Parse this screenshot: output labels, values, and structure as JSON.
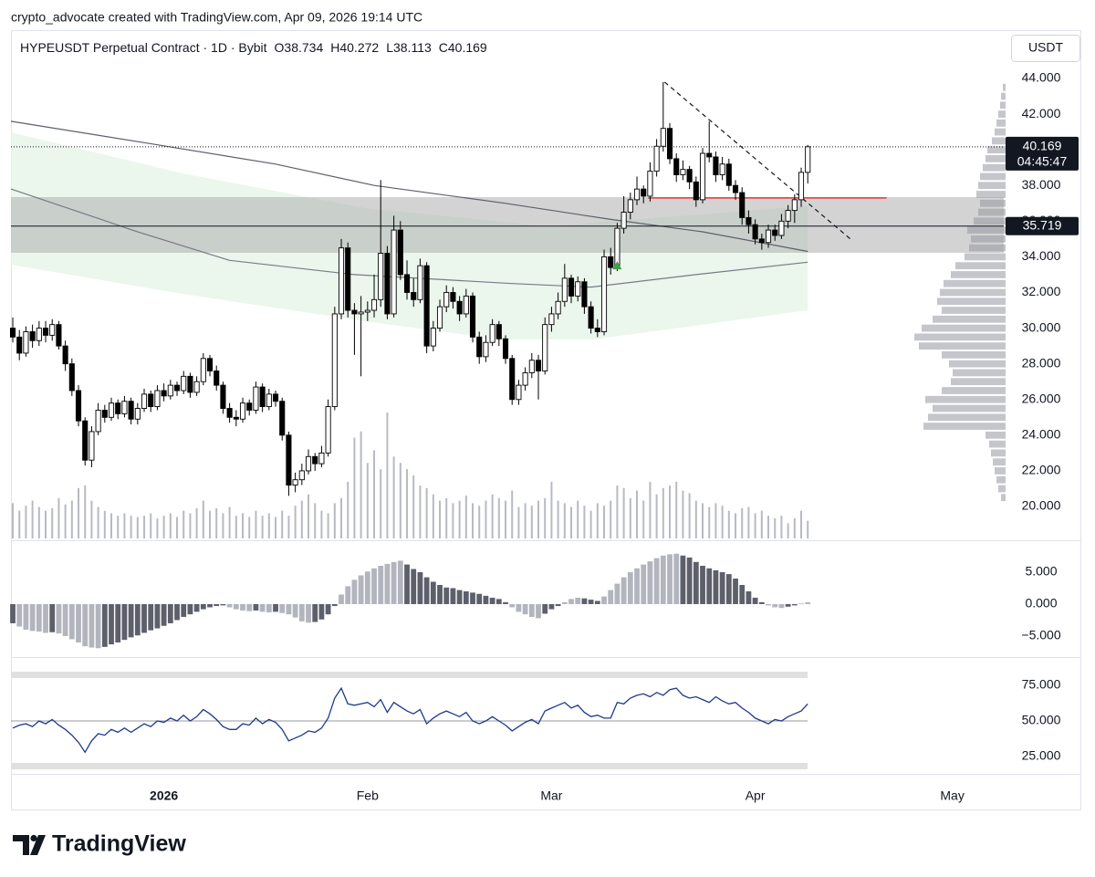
{
  "header": {
    "credit": "crypto_advocate created with TradingView.com, Apr 09, 2026 19:14 UTC"
  },
  "brand": "TradingView",
  "chart_data": {
    "type": "candlestick",
    "title": "HYPEUSDT Perpetual Contract · 1D · Bybit",
    "ohlc_letters": [
      "O",
      "H",
      "L",
      "C"
    ],
    "currency_button": "USDT",
    "xlim": [
      -0.28,
      150.83
    ],
    "xticks": [
      {
        "value": 23,
        "label": "2026"
      },
      {
        "value": 54,
        "label": "Feb"
      },
      {
        "value": 82,
        "label": "Mar"
      },
      {
        "value": 113,
        "label": "Apr"
      },
      {
        "value": 143,
        "label": "May"
      }
    ],
    "ylim": [
      18.21,
      46.71
    ],
    "yticks": [
      {
        "value": 44,
        "label": "44.000"
      },
      {
        "value": 42,
        "label": "42.000"
      },
      {
        "value": 40,
        "label": "40.000"
      },
      {
        "value": 38,
        "label": "38.000"
      },
      {
        "value": 36,
        "label": "36.000"
      },
      {
        "value": 34,
        "label": "34.000"
      },
      {
        "value": 32,
        "label": "32.000"
      },
      {
        "value": 30,
        "label": "30.000"
      },
      {
        "value": 28,
        "label": "28.000"
      },
      {
        "value": 26,
        "label": "26.000"
      },
      {
        "value": 24,
        "label": "24.000"
      },
      {
        "value": 22,
        "label": "22.000"
      },
      {
        "value": 20,
        "label": "20.000"
      }
    ],
    "up_color": "#ffffff",
    "down_color": "#000000",
    "candles": [
      [
        30.0,
        30.6,
        29.2,
        29.5
      ],
      [
        29.5,
        29.9,
        28.2,
        28.6
      ],
      [
        28.6,
        30.1,
        28.4,
        29.8
      ],
      [
        29.8,
        30.2,
        28.9,
        29.3
      ],
      [
        29.3,
        30.4,
        29.0,
        30.0
      ],
      [
        30.0,
        30.4,
        29.2,
        29.6
      ],
      [
        29.6,
        30.5,
        29.3,
        30.2
      ],
      [
        30.2,
        30.4,
        28.8,
        29.0
      ],
      [
        29.0,
        29.3,
        27.6,
        28.0
      ],
      [
        28.0,
        28.3,
        26.2,
        26.5
      ],
      [
        26.5,
        26.8,
        24.5,
        24.8
      ],
      [
        24.8,
        25.0,
        22.3,
        22.6
      ],
      [
        22.6,
        24.5,
        22.2,
        24.2
      ],
      [
        24.2,
        25.8,
        24.0,
        25.4
      ],
      [
        25.4,
        25.7,
        24.7,
        25.0
      ],
      [
        25.0,
        26.1,
        24.8,
        25.8
      ],
      [
        25.8,
        26.0,
        24.9,
        25.2
      ],
      [
        25.2,
        26.2,
        25.0,
        25.9
      ],
      [
        25.9,
        26.1,
        24.6,
        24.9
      ],
      [
        24.9,
        25.8,
        24.6,
        25.5
      ],
      [
        25.5,
        26.6,
        25.3,
        26.3
      ],
      [
        26.3,
        26.5,
        25.3,
        25.6
      ],
      [
        25.6,
        26.8,
        25.4,
        26.5
      ],
      [
        26.5,
        26.9,
        25.9,
        26.2
      ],
      [
        26.2,
        27.1,
        26.0,
        26.8
      ],
      [
        26.8,
        27.0,
        26.2,
        26.5
      ],
      [
        26.5,
        27.6,
        26.3,
        27.3
      ],
      [
        27.3,
        27.5,
        26.1,
        26.4
      ],
      [
        26.4,
        27.3,
        26.2,
        27.0
      ],
      [
        27.0,
        28.6,
        26.8,
        28.3
      ],
      [
        28.3,
        28.5,
        27.3,
        27.6
      ],
      [
        27.6,
        27.9,
        26.5,
        26.8
      ],
      [
        26.8,
        27.0,
        25.2,
        25.5
      ],
      [
        25.5,
        25.8,
        24.7,
        25.0
      ],
      [
        25.0,
        25.4,
        24.5,
        24.9
      ],
      [
        24.9,
        26.1,
        24.7,
        25.8
      ],
      [
        25.8,
        26.0,
        25.1,
        25.4
      ],
      [
        25.4,
        27.0,
        25.2,
        26.7
      ],
      [
        26.7,
        26.9,
        25.3,
        25.6
      ],
      [
        25.6,
        26.6,
        25.4,
        26.3
      ],
      [
        26.3,
        26.5,
        25.6,
        25.9
      ],
      [
        25.9,
        26.1,
        23.7,
        24.0
      ],
      [
        24.0,
        24.2,
        20.6,
        21.2
      ],
      [
        21.2,
        21.9,
        20.8,
        21.5
      ],
      [
        21.5,
        22.4,
        21.2,
        22.0
      ],
      [
        22.0,
        23.2,
        21.8,
        22.8
      ],
      [
        22.8,
        23.0,
        22.0,
        22.4
      ],
      [
        22.4,
        23.4,
        22.2,
        23.0
      ],
      [
        23.0,
        26.0,
        22.8,
        25.6
      ],
      [
        25.6,
        31.2,
        25.4,
        30.8
      ],
      [
        30.8,
        35.0,
        30.5,
        34.5
      ],
      [
        34.5,
        34.8,
        30.6,
        31.0
      ],
      [
        31.0,
        31.4,
        28.5,
        30.8
      ],
      [
        30.8,
        31.8,
        27.3,
        30.9
      ],
      [
        30.9,
        31.5,
        30.4,
        31.0
      ],
      [
        31.0,
        33.0,
        30.6,
        31.6
      ],
      [
        31.6,
        38.3,
        31.2,
        34.2
      ],
      [
        34.2,
        34.6,
        30.5,
        30.8
      ],
      [
        30.8,
        36.3,
        30.6,
        35.5
      ],
      [
        35.5,
        36.0,
        32.7,
        33.0
      ],
      [
        33.0,
        33.8,
        31.6,
        32.0
      ],
      [
        32.0,
        32.8,
        31.2,
        31.6
      ],
      [
        31.6,
        33.9,
        31.4,
        33.5
      ],
      [
        33.5,
        33.7,
        28.6,
        29.0
      ],
      [
        29.0,
        30.4,
        28.7,
        30.0
      ],
      [
        30.0,
        31.6,
        29.8,
        31.2
      ],
      [
        31.2,
        32.4,
        30.9,
        32.0
      ],
      [
        32.0,
        32.3,
        31.1,
        31.5
      ],
      [
        31.5,
        31.8,
        30.4,
        30.8
      ],
      [
        30.8,
        32.2,
        30.6,
        31.8
      ],
      [
        31.8,
        32.0,
        29.2,
        29.5
      ],
      [
        29.5,
        29.8,
        28.0,
        28.4
      ],
      [
        28.4,
        29.6,
        28.1,
        29.2
      ],
      [
        29.2,
        30.5,
        29.0,
        30.2
      ],
      [
        30.2,
        30.4,
        29.0,
        29.4
      ],
      [
        29.4,
        29.6,
        28.0,
        28.3
      ],
      [
        28.3,
        28.5,
        25.7,
        26.0
      ],
      [
        26.0,
        27.1,
        25.7,
        26.8
      ],
      [
        26.8,
        27.8,
        26.5,
        27.5
      ],
      [
        27.5,
        28.6,
        27.2,
        28.2
      ],
      [
        28.2,
        28.5,
        26.0,
        27.6
      ],
      [
        27.6,
        30.6,
        27.4,
        30.2
      ],
      [
        30.2,
        31.2,
        29.8,
        30.8
      ],
      [
        30.8,
        32.0,
        30.5,
        31.5
      ],
      [
        31.5,
        33.6,
        31.2,
        32.8
      ],
      [
        32.8,
        33.0,
        31.4,
        31.8
      ],
      [
        31.8,
        32.9,
        31.5,
        32.6
      ],
      [
        32.6,
        32.8,
        30.8,
        31.2
      ],
      [
        31.2,
        31.5,
        29.7,
        30.0
      ],
      [
        30.0,
        30.5,
        29.5,
        29.8
      ],
      [
        29.8,
        34.4,
        29.6,
        34.0
      ],
      [
        34.0,
        34.5,
        33.0,
        33.4
      ],
      [
        33.4,
        35.9,
        33.2,
        35.6
      ],
      [
        35.6,
        37.4,
        35.3,
        36.5
      ],
      [
        36.5,
        37.6,
        36.1,
        37.2
      ],
      [
        37.2,
        38.5,
        36.9,
        37.8
      ],
      [
        37.8,
        38.0,
        37.0,
        37.4
      ],
      [
        37.4,
        39.3,
        37.1,
        38.8
      ],
      [
        38.8,
        40.6,
        38.5,
        40.2
      ],
      [
        40.2,
        43.8,
        39.9,
        41.2
      ],
      [
        41.2,
        41.5,
        39.2,
        39.5
      ],
      [
        39.5,
        39.8,
        38.2,
        38.6
      ],
      [
        38.6,
        39.4,
        38.3,
        38.9
      ],
      [
        38.9,
        39.1,
        37.8,
        38.2
      ],
      [
        38.2,
        38.5,
        36.8,
        37.2
      ],
      [
        37.2,
        40.1,
        37.0,
        39.8
      ],
      [
        39.8,
        41.6,
        39.3,
        39.6
      ],
      [
        39.6,
        39.9,
        38.2,
        38.6
      ],
      [
        38.6,
        39.6,
        38.3,
        39.2
      ],
      [
        39.2,
        39.5,
        37.7,
        38.0
      ],
      [
        38.0,
        38.3,
        37.2,
        37.6
      ],
      [
        37.6,
        37.9,
        35.8,
        36.2
      ],
      [
        36.2,
        36.6,
        35.3,
        35.8
      ],
      [
        35.8,
        36.1,
        34.7,
        35.0
      ],
      [
        35.0,
        35.3,
        34.4,
        34.8
      ],
      [
        34.8,
        35.8,
        34.5,
        35.5
      ],
      [
        35.5,
        35.8,
        34.9,
        35.2
      ],
      [
        35.2,
        36.4,
        35.0,
        36.0
      ],
      [
        36.0,
        36.9,
        35.6,
        36.6
      ],
      [
        36.6,
        37.5,
        35.9,
        37.2
      ],
      [
        37.2,
        39.0,
        36.8,
        38.734
      ],
      [
        38.734,
        40.272,
        38.113,
        40.169
      ]
    ],
    "volume": [
      28,
      22,
      26,
      30,
      25,
      22,
      24,
      32,
      27,
      30,
      40,
      42,
      30,
      25,
      22,
      20,
      18,
      20,
      18,
      17,
      18,
      20,
      16,
      18,
      20,
      17,
      22,
      20,
      24,
      30,
      22,
      24,
      20,
      25,
      18,
      20,
      17,
      22,
      18,
      20,
      17,
      22,
      18,
      26,
      30,
      35,
      28,
      22,
      20,
      28,
      32,
      45,
      80,
      85,
      60,
      70,
      55,
      100,
      65,
      60,
      55,
      50,
      42,
      40,
      35,
      30,
      32,
      28,
      30,
      34,
      28,
      26,
      30,
      35,
      32,
      30,
      38,
      25,
      28,
      26,
      30,
      32,
      45,
      30,
      28,
      25,
      30,
      26,
      22,
      28,
      26,
      30,
      42,
      40,
      32,
      38,
      30,
      45,
      35,
      40,
      42,
      45,
      38,
      36,
      30,
      28,
      25,
      28,
      26,
      22,
      20,
      24,
      25,
      20,
      22,
      18,
      16,
      18,
      12,
      16,
      22,
      14
    ],
    "volume_color": "#b8bac2",
    "last_price_countdown": "04:45:47",
    "price_line": {
      "value": 35.719,
      "label": "35.719"
    },
    "resistance": {
      "value": 37.3,
      "x": [
        96.7,
        133
      ],
      "color": "#e53935"
    },
    "trendline": {
      "x": [
        99.2,
        127.5
      ],
      "values": [
        43.8,
        35.0
      ]
    },
    "signal_marker": {
      "x": 92,
      "value": 33.5,
      "color": "#43a047"
    },
    "moving_averages": [
      {
        "color": "#5d606b",
        "x": [
          -0.28,
          20,
          40,
          55,
          75,
          91,
          105,
          121
        ],
        "values": [
          41.6,
          40.4,
          39.2,
          38.0,
          37.0,
          36.1,
          35.4,
          34.3
        ]
      },
      {
        "color": "#787b86",
        "x": [
          -0.28,
          19,
          33,
          52,
          76,
          88,
          104,
          121
        ],
        "values": [
          37.8,
          35.4,
          33.8,
          33.0,
          32.5,
          32.3,
          33.0,
          33.7
        ]
      }
    ],
    "volume_profile": {
      "levels": [
        20.5,
        21,
        21.5,
        22,
        22.5,
        23,
        23.5,
        24,
        24.5,
        25,
        25.5,
        26,
        26.5,
        27,
        27.5,
        28,
        28.5,
        29,
        29.5,
        30,
        30.5,
        31,
        31.5,
        32,
        32.5,
        33,
        33.5,
        34,
        34.5,
        35,
        35.5,
        36,
        36.5,
        37,
        37.5,
        38,
        38.5,
        39,
        39.5,
        40,
        40.5,
        41,
        41.5,
        42,
        42.5,
        43,
        43.5
      ],
      "values": [
        5,
        8,
        10,
        12,
        14,
        16,
        18,
        22,
        90,
        85,
        80,
        88,
        70,
        60,
        58,
        62,
        70,
        95,
        100,
        92,
        80,
        70,
        75,
        72,
        68,
        60,
        55,
        45,
        40,
        38,
        42,
        35,
        30,
        28,
        32,
        30,
        28,
        25,
        22,
        20,
        15,
        12,
        10,
        8,
        6,
        5,
        3
      ]
    },
    "macd": {
      "ylim": [
        -8.29,
        9.57
      ],
      "yticks": [
        {
          "value": 5,
          "label": "5.000"
        },
        {
          "value": 0,
          "label": "0.000"
        },
        {
          "value": -5,
          "label": "−5.000"
        }
      ],
      "rising_color": "#b2b5be",
      "falling_color": "#5d606b",
      "values": [
        -3,
        -3.5,
        -4,
        -4.2,
        -4.3,
        -4.5,
        -4.4,
        -4.6,
        -5.0,
        -5.5,
        -6.0,
        -6.6,
        -6.8,
        -6.9,
        -6.7,
        -6.3,
        -6.0,
        -5.6,
        -5.2,
        -4.9,
        -4.5,
        -4.1,
        -3.8,
        -3.4,
        -3.0,
        -2.5,
        -2.0,
        -1.6,
        -1.2,
        -0.8,
        -0.5,
        -0.3,
        -0.2,
        -0.5,
        -0.8,
        -1.0,
        -1.1,
        -1.0,
        -1.2,
        -1.3,
        -1.2,
        -1.4,
        -1.6,
        -2.1,
        -2.7,
        -2.9,
        -2.8,
        -2.4,
        -1.6,
        -0.3,
        1.5,
        2.8,
        3.8,
        4.5,
        5.1,
        5.6,
        6.0,
        6.3,
        6.6,
        6.8,
        6.2,
        5.5,
        5.0,
        4.2,
        3.5,
        3.0,
        2.6,
        2.5,
        2.2,
        2.0,
        1.8,
        1.6,
        1.3,
        1.0,
        0.8,
        0.3,
        -0.5,
        -1.2,
        -1.6,
        -2.0,
        -2.2,
        -1.5,
        -0.8,
        -0.3,
        0.3,
        0.8,
        1.0,
        0.9,
        0.7,
        0.5,
        1.2,
        2.2,
        3.2,
        4.2,
        5.0,
        5.6,
        6.2,
        6.7,
        7.2,
        7.6,
        7.8,
        7.9,
        7.6,
        7.3,
        6.6,
        6.0,
        5.6,
        5.3,
        5.0,
        4.7,
        4.0,
        3.0,
        2.0,
        1.0,
        0.3,
        -0.2,
        -0.5,
        -0.6,
        -0.4,
        -0.2,
        0.1,
        0.3
      ]
    },
    "rsi": {
      "ylim": [
        14.7,
        93.6
      ],
      "yticks": [
        {
          "value": 75,
          "label": "75.000"
        },
        {
          "value": 50,
          "label": "50.000"
        },
        {
          "value": 25,
          "label": "25.000"
        }
      ],
      "color": "#1e3a8a",
      "values": [
        45,
        47,
        48,
        46,
        50,
        48,
        51,
        47,
        44,
        40,
        35,
        28,
        36,
        41,
        40,
        44,
        42,
        45,
        42,
        45,
        48,
        46,
        50,
        49,
        52,
        50,
        54,
        50,
        53,
        58,
        55,
        51,
        46,
        44,
        44,
        48,
        47,
        52,
        48,
        51,
        49,
        44,
        36,
        38,
        40,
        43,
        42,
        45,
        52,
        66,
        73,
        62,
        61,
        62,
        63,
        60,
        65,
        56,
        63,
        60,
        57,
        55,
        58,
        48,
        52,
        55,
        57,
        55,
        53,
        56,
        50,
        48,
        50,
        53,
        50,
        47,
        43,
        46,
        49,
        51,
        48,
        57,
        59,
        61,
        63,
        59,
        61,
        56,
        53,
        54,
        52,
        52,
        63,
        62,
        66,
        68,
        69,
        67,
        70,
        68,
        72,
        73,
        68,
        66,
        67,
        65,
        63,
        67,
        64,
        62,
        63,
        59,
        56,
        52,
        50,
        48,
        51,
        50,
        53,
        55,
        57,
        62
      ]
    }
  }
}
